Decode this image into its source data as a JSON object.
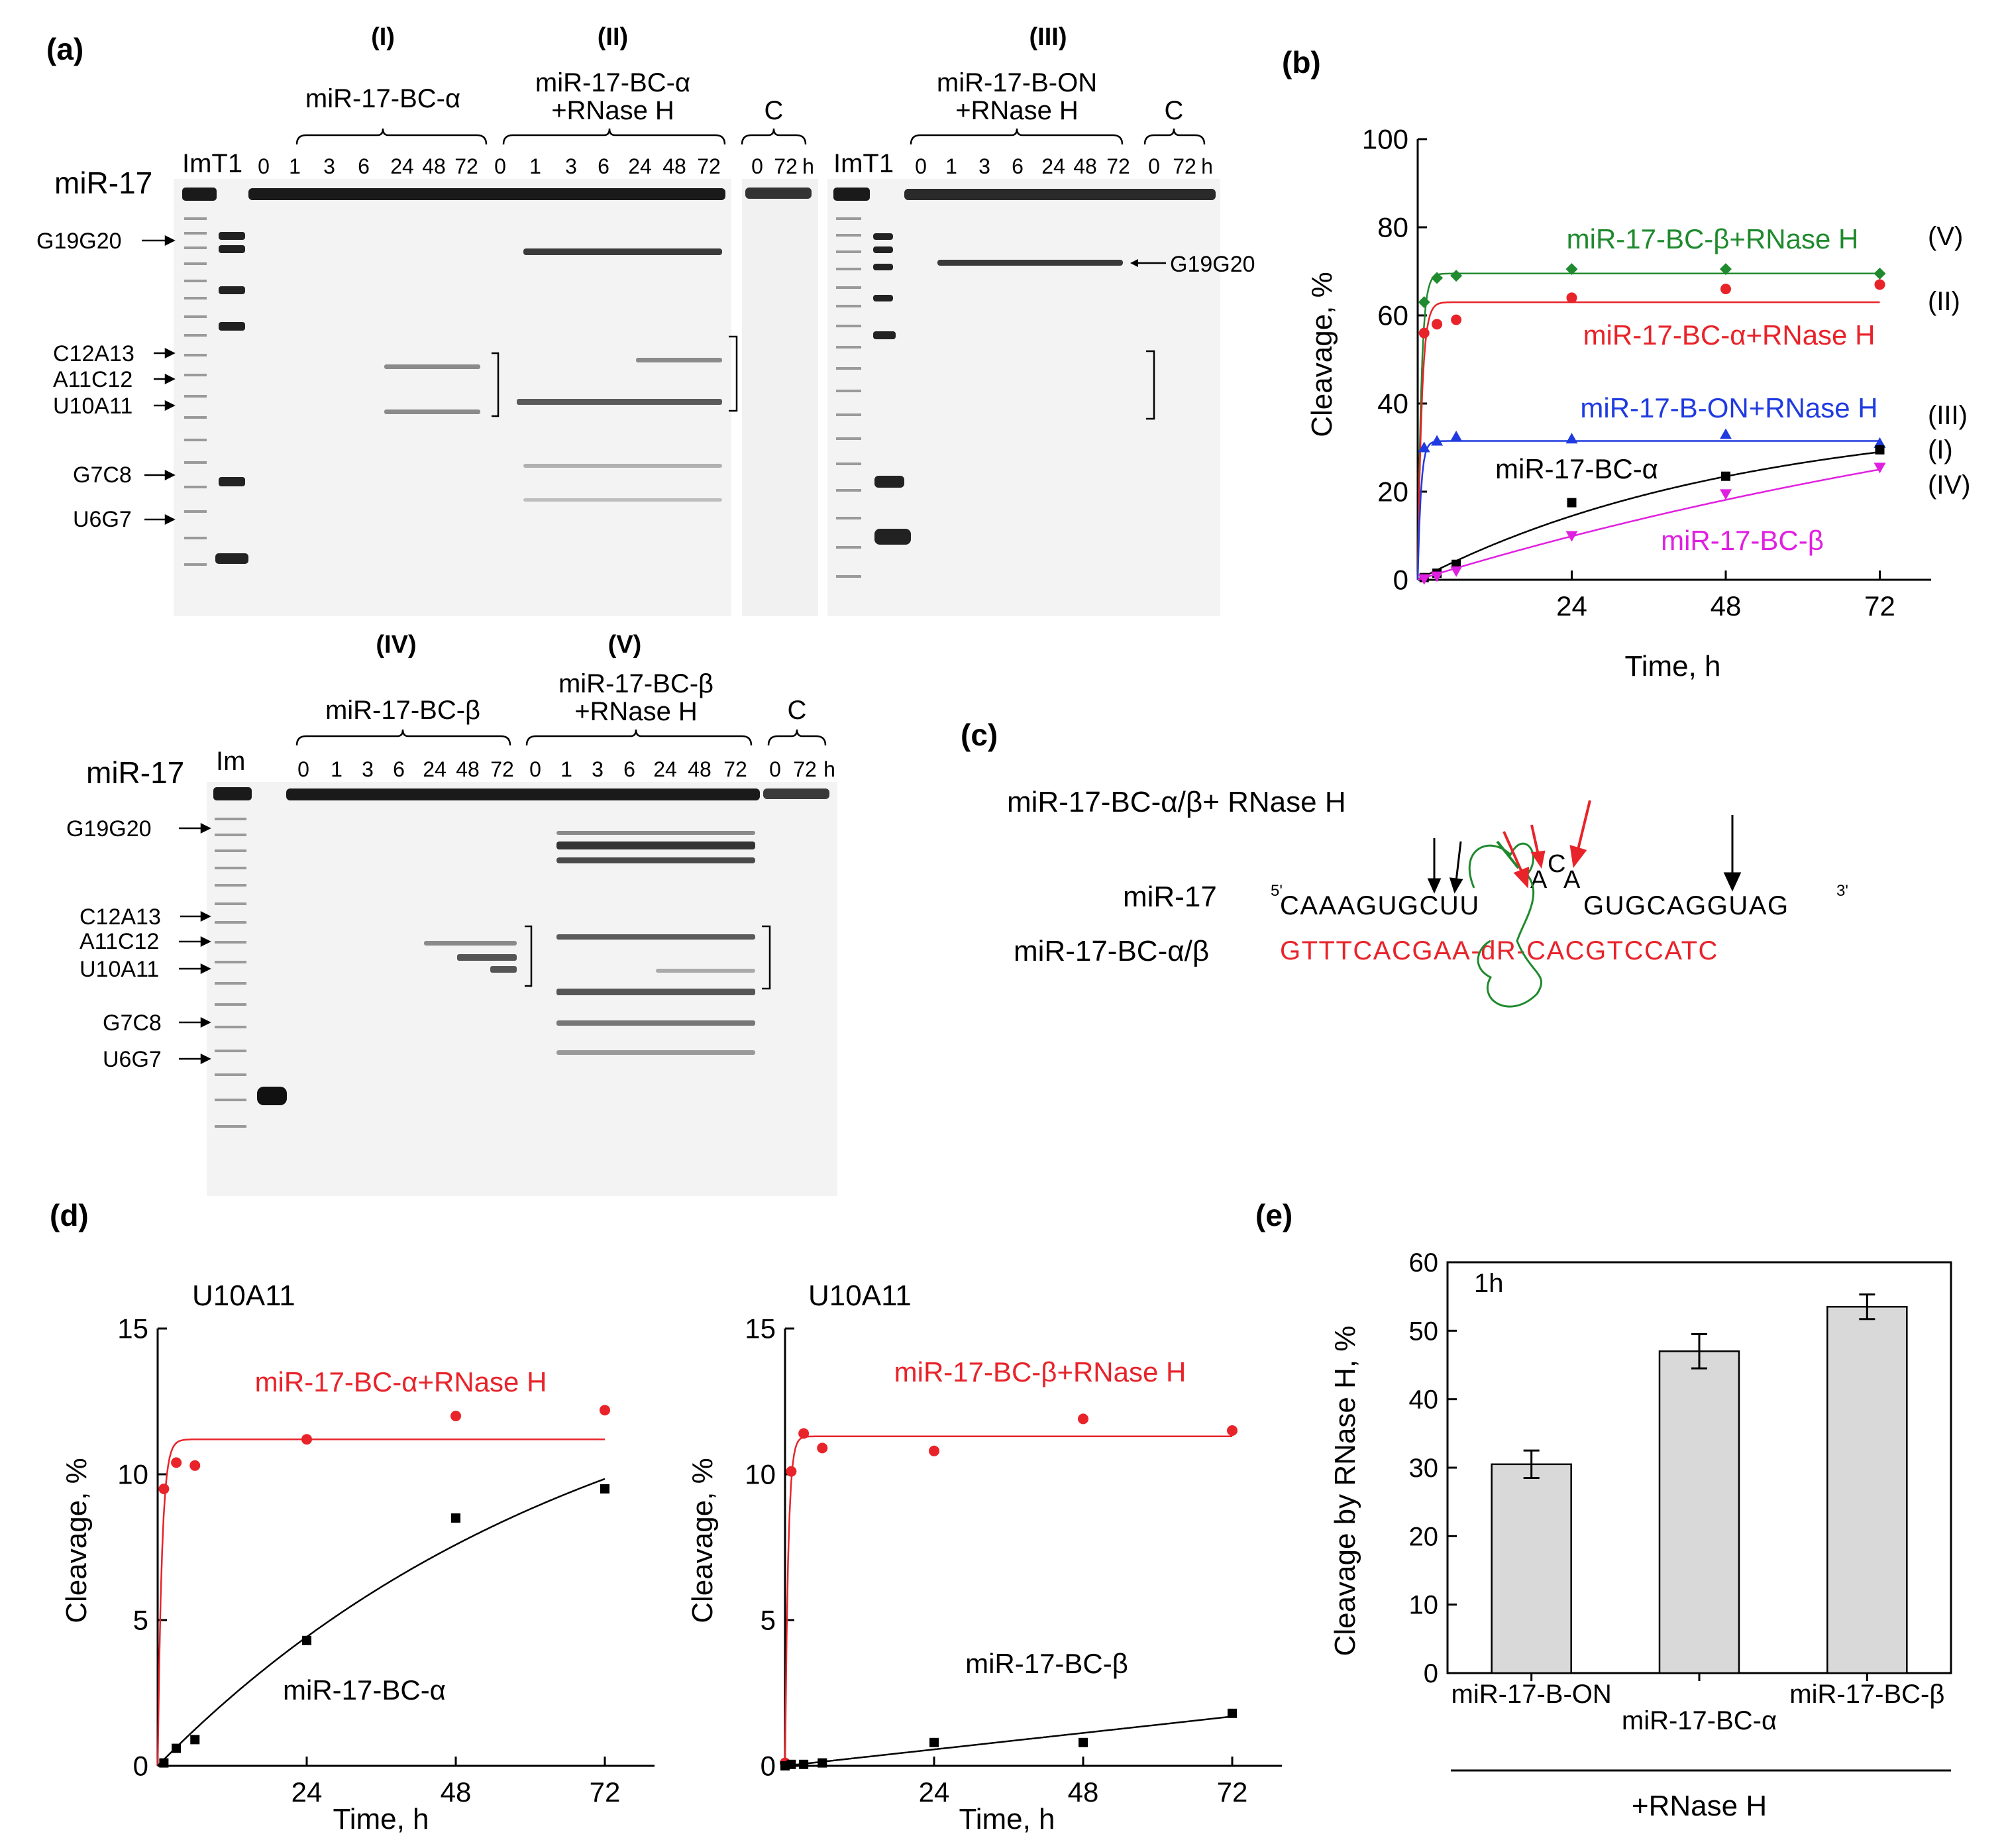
{
  "panels": {
    "a": {
      "label": "(a)",
      "sections": {
        "I": "(I)",
        "II": "(II)",
        "III": "(III)"
      },
      "group_I": {
        "name": "miR-17-BC-α",
        "times": [
          "0",
          "1",
          "3",
          "6",
          "24",
          "48",
          "72"
        ]
      },
      "group_II": {
        "name_line1": "miR-17-BC-α",
        "name_line2": "+RNase H",
        "times": [
          "0",
          "1",
          "3",
          "6",
          "24",
          "48",
          "72"
        ]
      },
      "group_C1": {
        "name": "C",
        "times": [
          "0",
          "72"
        ],
        "unit": "h"
      },
      "group_III": {
        "name_line1": "miR-17-B-ON",
        "name_line2": "+RNase H",
        "times": [
          "0",
          "1",
          "3",
          "6",
          "24",
          "48",
          "72"
        ]
      },
      "group_C2": {
        "name": "C",
        "times": [
          "0",
          "72"
        ],
        "unit": "h"
      },
      "lane_markers_1": "ImT1",
      "lane_markers_2": "ImT1",
      "rna": "miR-17",
      "bands": [
        "G19G20",
        "C12A13",
        "A11C12",
        "U10A11",
        "G7C8",
        "U6G7"
      ],
      "right_band": "G19G20"
    },
    "a2": {
      "sections": {
        "IV": "(IV)",
        "V": "(V)"
      },
      "group_IV": {
        "name": "miR-17-BC-β",
        "times": [
          "0",
          "1",
          "3",
          "6",
          "24",
          "48",
          "72"
        ]
      },
      "group_V": {
        "name_line1": "miR-17-BC-β",
        "name_line2": "+RNase H",
        "times": [
          "0",
          "1",
          "3",
          "6",
          "24",
          "48",
          "72"
        ]
      },
      "group_C": {
        "name": "C",
        "times": [
          "0",
          "72"
        ],
        "unit": "h"
      },
      "lane_marker": "Im",
      "rna": "miR-17",
      "bands": [
        "G19G20",
        "C12A13",
        "A11C12",
        "U10A11",
        "G7C8",
        "U6G7"
      ]
    },
    "c": {
      "label": "(c)",
      "title": "miR-17-BC-α/β+ RNase H",
      "top_name": "miR-17",
      "top_prime5": "5'",
      "top_seq_left": "CAAAGUGCUU",
      "top_loop": [
        "A",
        "C",
        "A"
      ],
      "top_seq_right": "GUGCAGGUAG",
      "top_prime3": "3'",
      "bottom_name": "miR-17-BC-α/β",
      "bottom_seq": "GTTTCACGAA-dR-CACGTCCATC"
    }
  },
  "chart_data": [
    {
      "id": "b",
      "label": "(b)",
      "type": "scatter",
      "xlabel": "Time, h",
      "ylabel": "Cleavage, %",
      "xlim": [
        0,
        80
      ],
      "ylim": [
        0,
        100
      ],
      "xticks": [
        24,
        48,
        72
      ],
      "yticks": [
        0,
        20,
        40,
        60,
        80,
        100
      ],
      "series": [
        {
          "name": "miR-17-BC-β+RNase H",
          "tag": "(V)",
          "color": "#1f8a2e",
          "marker": "diamond",
          "x": [
            1,
            3,
            6,
            24,
            48,
            72
          ],
          "y": [
            63,
            68.5,
            69,
            70.5,
            70.5,
            69.5
          ],
          "fit": {
            "kind": "exp",
            "plateau": 69.5,
            "k": 1.8
          }
        },
        {
          "name": "miR-17-BC-α+RNase H",
          "tag": "(II)",
          "color": "#e8232a",
          "marker": "circle",
          "x": [
            1,
            3,
            6,
            24,
            48,
            72
          ],
          "y": [
            56,
            58,
            59,
            64,
            66,
            67
          ],
          "fit": {
            "kind": "exp",
            "plateau": 63,
            "k": 1.6
          }
        },
        {
          "name": "miR-17-B-ON+RNase H",
          "tag": "(III)",
          "color": "#1f3be0",
          "marker": "triangle-up",
          "x": [
            1,
            3,
            6,
            24,
            48,
            72
          ],
          "y": [
            30,
            31.5,
            32.5,
            32,
            33,
            31
          ],
          "fit": {
            "kind": "exp",
            "plateau": 31.5,
            "k": 2.0
          }
        },
        {
          "name": "miR-17-BC-α",
          "tag": "(I)",
          "color": "#000000",
          "marker": "square",
          "x": [
            1,
            3,
            6,
            24,
            48,
            72
          ],
          "y": [
            0.5,
            1.5,
            3.5,
            17.5,
            23.5,
            29.5
          ],
          "fit": {
            "kind": "exp",
            "plateau": 38,
            "k": 0.02
          }
        },
        {
          "name": "miR-17-BC-β",
          "tag": "(IV)",
          "color": "#e020e0",
          "marker": "triangle-down",
          "x": [
            1,
            3,
            6,
            24,
            48,
            72
          ],
          "y": [
            0.2,
            0.8,
            2,
            10,
            19.5,
            25.5
          ],
          "fit": {
            "kind": "exp",
            "plateau": 60,
            "k": 0.0075
          }
        }
      ]
    },
    {
      "id": "d1",
      "label": "(d)",
      "type": "scatter",
      "title": "U10A11",
      "xlabel": "Time, h",
      "ylabel": "Cleavage, %",
      "xlim": [
        0,
        80
      ],
      "ylim": [
        0,
        15
      ],
      "xticks": [
        24,
        48,
        72
      ],
      "yticks": [
        0,
        5,
        10,
        15
      ],
      "series": [
        {
          "name": "miR-17-BC-α+RNase H",
          "color": "#e8232a",
          "marker": "circle",
          "x": [
            1,
            3,
            6,
            24,
            48,
            72
          ],
          "y": [
            9.5,
            10.4,
            10.3,
            11.2,
            12.0,
            12.2
          ],
          "fit": {
            "kind": "exp",
            "plateau": 11.2,
            "k": 1.5
          }
        },
        {
          "name": "miR-17-BC-α",
          "color": "#000000",
          "marker": "square",
          "x": [
            1,
            3,
            6,
            24,
            48,
            72
          ],
          "y": [
            0.1,
            0.6,
            0.9,
            4.3,
            8.5,
            9.5
          ],
          "fit": {
            "kind": "exp",
            "plateau": 15.5,
            "k": 0.014
          }
        }
      ]
    },
    {
      "id": "d2",
      "type": "scatter",
      "title": "U10A11",
      "xlabel": "Time, h",
      "ylabel": "Cleavage, %",
      "xlim": [
        0,
        80
      ],
      "ylim": [
        0,
        15
      ],
      "xticks": [
        24,
        48,
        72
      ],
      "yticks": [
        0,
        5,
        10,
        15
      ],
      "series": [
        {
          "name": "miR-17-BC-β+RNase H",
          "color": "#e8232a",
          "marker": "circle",
          "x": [
            0,
            1,
            3,
            6,
            24,
            48,
            72
          ],
          "y": [
            0.1,
            10.1,
            11.4,
            10.9,
            10.8,
            11.9,
            11.5
          ],
          "fit": {
            "kind": "exp",
            "plateau": 11.3,
            "k": 2.0
          }
        },
        {
          "name": "miR-17-BC-β",
          "color": "#000000",
          "marker": "square",
          "x": [
            0,
            1,
            3,
            6,
            24,
            48,
            72
          ],
          "y": [
            0,
            0.05,
            0.05,
            0.1,
            0.8,
            0.8,
            1.8
          ],
          "fit": {
            "kind": "linear",
            "slope": 0.0235
          }
        }
      ]
    },
    {
      "id": "e",
      "label": "(e)",
      "type": "bar",
      "annotation": "1h",
      "ylabel": "Cleavage by RNase H, %",
      "ylim": [
        0,
        60
      ],
      "yticks": [
        0,
        10,
        20,
        30,
        40,
        50,
        60
      ],
      "categories": [
        "miR-17-B-ON",
        "miR-17-BC-α",
        "miR-17-BC-β"
      ],
      "values": [
        30.5,
        47,
        53.5
      ],
      "errors": [
        2,
        2.5,
        1.8
      ],
      "bar_color": "#d9d9d9",
      "group_label": "+RNase H"
    }
  ]
}
